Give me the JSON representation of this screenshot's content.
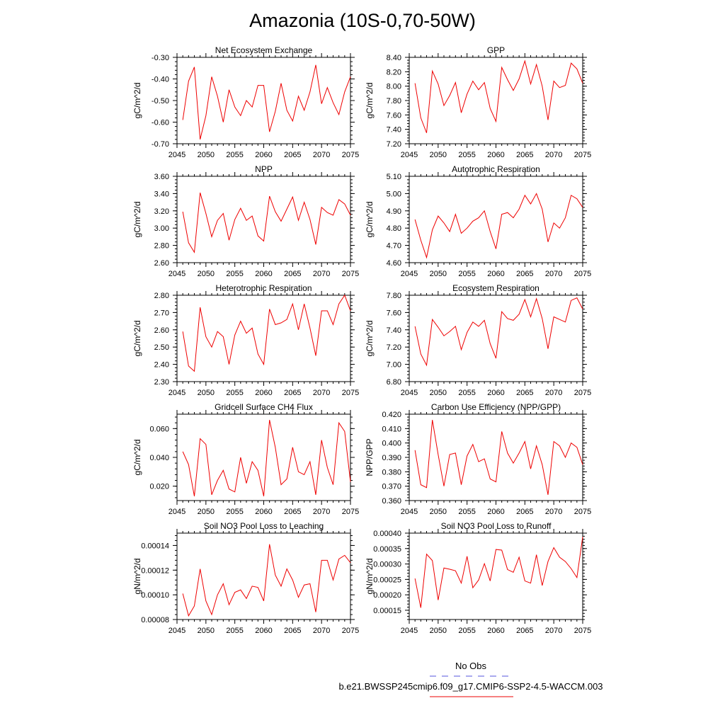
{
  "title": "Amazonia (10S-0,70-50W)",
  "legend": {
    "obs_label": "No Obs",
    "obs_color": "#5555dd",
    "model_label": "b.e21.BWSSP245cmip6.f09_g17.CMIP6-SSP2-4.5-WACCM.003",
    "model_color": "#ee0000"
  },
  "x_values": [
    2046,
    2047,
    2048,
    2049,
    2050,
    2051,
    2052,
    2053,
    2054,
    2055,
    2056,
    2057,
    2058,
    2059,
    2060,
    2061,
    2062,
    2063,
    2064,
    2065,
    2066,
    2067,
    2068,
    2069,
    2070,
    2071,
    2072,
    2073,
    2074,
    2075
  ],
  "chart_data": [
    {
      "type": "line",
      "title": "Net Ecosystem Exchange",
      "ylabel": "gC/m^2/d",
      "xlim": [
        2045,
        2075
      ],
      "xticks": [
        "2045",
        "2050",
        "2055",
        "2060",
        "2065",
        "2070",
        "2075"
      ],
      "ylim": [
        -0.7,
        -0.3
      ],
      "yticks": [
        "-0.70",
        "-0.60",
        "-0.50",
        "-0.40",
        "-0.30"
      ],
      "series": [
        {
          "name": "b.e21.BWSSP245cmip6.f09_g17.CMIP6-SSP2-4.5-WACCM.003",
          "values": [
            -0.59,
            -0.41,
            -0.345,
            -0.68,
            -0.57,
            -0.39,
            -0.48,
            -0.6,
            -0.45,
            -0.53,
            -0.57,
            -0.5,
            -0.53,
            -0.43,
            -0.43,
            -0.645,
            -0.55,
            -0.42,
            -0.545,
            -0.595,
            -0.48,
            -0.545,
            -0.46,
            -0.335,
            -0.515,
            -0.44,
            -0.51,
            -0.565,
            -0.46,
            -0.39
          ]
        }
      ]
    },
    {
      "type": "line",
      "title": "GPP",
      "ylabel": "gC/m^2/d",
      "xlim": [
        2045,
        2075
      ],
      "xticks": [
        "2045",
        "2050",
        "2055",
        "2060",
        "2065",
        "2070",
        "2075"
      ],
      "ylim": [
        7.2,
        8.4
      ],
      "yticks": [
        "7.20",
        "7.40",
        "7.60",
        "7.80",
        "8.00",
        "8.20",
        "8.40"
      ],
      "series": [
        {
          "name": "b.e21.BWSSP245cmip6.f09_g17.CMIP6-SSP2-4.5-WACCM.003",
          "values": [
            8.04,
            7.56,
            7.35,
            8.21,
            8.03,
            7.73,
            7.87,
            8.05,
            7.63,
            7.89,
            8.07,
            7.95,
            8.05,
            7.69,
            7.51,
            8.26,
            8.09,
            7.94,
            8.1,
            8.35,
            8.03,
            8.3,
            8.0,
            7.53,
            8.07,
            7.98,
            8.01,
            8.32,
            8.24,
            8.04
          ]
        }
      ]
    },
    {
      "type": "line",
      "title": "NPP",
      "ylabel": "gC/m^2/d",
      "xlim": [
        2045,
        2075
      ],
      "xticks": [
        "2045",
        "2050",
        "2055",
        "2060",
        "2065",
        "2070",
        "2075"
      ],
      "ylim": [
        2.6,
        3.6
      ],
      "yticks": [
        "2.60",
        "2.80",
        "3.00",
        "3.20",
        "3.40",
        "3.60"
      ],
      "series": [
        {
          "name": "b.e21.BWSSP245cmip6.f09_g17.CMIP6-SSP2-4.5-WACCM.003",
          "values": [
            3.19,
            2.83,
            2.72,
            3.41,
            3.17,
            2.9,
            3.09,
            3.17,
            2.86,
            3.1,
            3.23,
            3.09,
            3.14,
            2.91,
            2.85,
            3.37,
            3.19,
            3.08,
            3.22,
            3.36,
            3.09,
            3.3,
            3.1,
            2.81,
            3.24,
            3.18,
            3.15,
            3.33,
            3.28,
            3.15
          ]
        }
      ]
    },
    {
      "type": "line",
      "title": "Autotrophic Respiration",
      "ylabel": "gC/m^2/d",
      "xlim": [
        2045,
        2075
      ],
      "xticks": [
        "2045",
        "2050",
        "2055",
        "2060",
        "2065",
        "2070",
        "2075"
      ],
      "ylim": [
        4.6,
        5.1
      ],
      "yticks": [
        "4.60",
        "4.70",
        "4.80",
        "4.90",
        "5.00",
        "5.10"
      ],
      "series": [
        {
          "name": "b.e21.BWSSP245cmip6.f09_g17.CMIP6-SSP2-4.5-WACCM.003",
          "values": [
            4.85,
            4.73,
            4.63,
            4.79,
            4.87,
            4.83,
            4.78,
            4.88,
            4.77,
            4.8,
            4.84,
            4.86,
            4.9,
            4.78,
            4.68,
            4.88,
            4.89,
            4.86,
            4.91,
            4.99,
            4.94,
            5.0,
            4.91,
            4.72,
            4.83,
            4.8,
            4.86,
            4.99,
            4.97,
            4.92
          ]
        }
      ]
    },
    {
      "type": "line",
      "title": "Heterotrophic Respiration",
      "ylabel": "gC/m^2/d",
      "xlim": [
        2045,
        2075
      ],
      "xticks": [
        "2045",
        "2050",
        "2055",
        "2060",
        "2065",
        "2070",
        "2075"
      ],
      "ylim": [
        2.3,
        2.8
      ],
      "yticks": [
        "2.30",
        "2.40",
        "2.50",
        "2.60",
        "2.70",
        "2.80"
      ],
      "series": [
        {
          "name": "b.e21.BWSSP245cmip6.f09_g17.CMIP6-SSP2-4.5-WACCM.003",
          "values": [
            2.59,
            2.39,
            2.36,
            2.73,
            2.56,
            2.5,
            2.59,
            2.56,
            2.4,
            2.57,
            2.65,
            2.58,
            2.61,
            2.46,
            2.4,
            2.72,
            2.63,
            2.64,
            2.66,
            2.75,
            2.6,
            2.75,
            2.61,
            2.45,
            2.71,
            2.71,
            2.63,
            2.75,
            2.8,
            2.71
          ]
        }
      ]
    },
    {
      "type": "line",
      "title": "Ecosystem Respiration",
      "ylabel": "gC/m^2/d",
      "xlim": [
        2045,
        2075
      ],
      "xticks": [
        "2045",
        "2050",
        "2055",
        "2060",
        "2065",
        "2070",
        "2075"
      ],
      "ylim": [
        6.8,
        7.8
      ],
      "yticks": [
        "6.80",
        "7.00",
        "7.20",
        "7.40",
        "7.60",
        "7.80"
      ],
      "series": [
        {
          "name": "b.e21.BWSSP245cmip6.f09_g17.CMIP6-SSP2-4.5-WACCM.003",
          "values": [
            7.44,
            7.12,
            6.99,
            7.52,
            7.43,
            7.33,
            7.38,
            7.44,
            7.17,
            7.37,
            7.49,
            7.44,
            7.51,
            7.24,
            7.07,
            7.61,
            7.53,
            7.51,
            7.58,
            7.75,
            7.55,
            7.76,
            7.53,
            7.18,
            7.55,
            7.52,
            7.49,
            7.74,
            7.77,
            7.64
          ]
        }
      ]
    },
    {
      "type": "line",
      "title": "Gridcell Surface CH4 Flux",
      "ylabel": "gC/m^2/d",
      "xlim": [
        2045,
        2075
      ],
      "xticks": [
        "2045",
        "2050",
        "2055",
        "2060",
        "2065",
        "2070",
        "2075"
      ],
      "ylim": [
        0.01,
        0.07
      ],
      "ytickvals": [
        0.02,
        0.04,
        0.06
      ],
      "yticks": [
        "0.020",
        "0.040",
        "0.060"
      ],
      "series": [
        {
          "name": "b.e21.BWSSP245cmip6.f09_g17.CMIP6-SSP2-4.5-WACCM.003",
          "values": [
            0.044,
            0.035,
            0.013,
            0.053,
            0.049,
            0.014,
            0.024,
            0.031,
            0.018,
            0.016,
            0.04,
            0.022,
            0.037,
            0.031,
            0.013,
            0.066,
            0.047,
            0.021,
            0.025,
            0.047,
            0.03,
            0.028,
            0.037,
            0.014,
            0.052,
            0.033,
            0.021,
            0.064,
            0.058,
            0.023
          ]
        }
      ]
    },
    {
      "type": "line",
      "title": "Carbon Use Efficiency (NPP/GPP)",
      "ylabel": "NPP/GPP",
      "xlim": [
        2045,
        2075
      ],
      "xticks": [
        "2045",
        "2050",
        "2055",
        "2060",
        "2065",
        "2070",
        "2075"
      ],
      "ylim": [
        0.36,
        0.42
      ],
      "yticks": [
        "0.360",
        "0.370",
        "0.380",
        "0.390",
        "0.400",
        "0.410",
        "0.420"
      ],
      "series": [
        {
          "name": "b.e21.BWSSP245cmip6.f09_g17.CMIP6-SSP2-4.5-WACCM.003",
          "values": [
            0.395,
            0.371,
            0.369,
            0.416,
            0.392,
            0.37,
            0.392,
            0.393,
            0.371,
            0.391,
            0.399,
            0.387,
            0.389,
            0.375,
            0.373,
            0.408,
            0.393,
            0.386,
            0.393,
            0.401,
            0.382,
            0.398,
            0.385,
            0.364,
            0.401,
            0.398,
            0.39,
            0.4,
            0.397,
            0.385
          ]
        }
      ]
    },
    {
      "type": "line",
      "title": "Soil NO3 Pool Loss to Leaching",
      "ylabel": "gN/m^2/d",
      "xlim": [
        2045,
        2075
      ],
      "xticks": [
        "2045",
        "2050",
        "2055",
        "2060",
        "2065",
        "2070",
        "2075"
      ],
      "ylim": [
        8e-05,
        0.00015
      ],
      "ytickvals": [
        8e-05,
        0.0001,
        0.00012,
        0.00014
      ],
      "yticks": [
        "0.00008",
        "0.00010",
        "0.00012",
        "0.00014"
      ],
      "series": [
        {
          "name": "b.e21.BWSSP245cmip6.f09_g17.CMIP6-SSP2-4.5-WACCM.003",
          "values": [
            0.000101,
            8.3e-05,
            9.1e-05,
            0.000121,
            9.5e-05,
            8.4e-05,
            0.0001,
            0.000109,
            9.2e-05,
            0.000102,
            0.000104,
            9.7e-05,
            0.000107,
            0.000106,
            9.5e-05,
            0.000141,
            0.000116,
            0.000107,
            0.000121,
            0.000112,
            9.8e-05,
            0.000108,
            0.000109,
            8.6e-05,
            0.000128,
            0.000128,
            0.000112,
            0.000129,
            0.000132,
            0.000126
          ]
        }
      ]
    },
    {
      "type": "line",
      "title": "Soil NO3 Pool Loss to Runoff",
      "ylabel": "gN/m^2/d",
      "xlim": [
        2045,
        2075
      ],
      "xticks": [
        "2045",
        "2050",
        "2055",
        "2060",
        "2065",
        "2070",
        "2075"
      ],
      "ylim": [
        0.00012,
        0.0004
      ],
      "ytickvals": [
        0.00015,
        0.0002,
        0.00025,
        0.0003,
        0.00035,
        0.0004
      ],
      "yticks": [
        "0.00015",
        "0.00020",
        "0.00025",
        "0.00030",
        "0.00035",
        "0.00040"
      ],
      "series": [
        {
          "name": "b.e21.BWSSP245cmip6.f09_g17.CMIP6-SSP2-4.5-WACCM.003",
          "values": [
            0.000253,
            0.000158,
            0.000332,
            0.000311,
            0.000183,
            0.000287,
            0.000283,
            0.000278,
            0.000238,
            0.000325,
            0.000223,
            0.000248,
            0.000301,
            0.000245,
            0.000347,
            0.000345,
            0.000282,
            0.000273,
            0.000322,
            0.000245,
            0.000238,
            0.00033,
            0.00023,
            0.000308,
            0.000353,
            0.000322,
            0.000308,
            0.000285,
            0.000256,
            0.000388
          ]
        }
      ]
    }
  ]
}
